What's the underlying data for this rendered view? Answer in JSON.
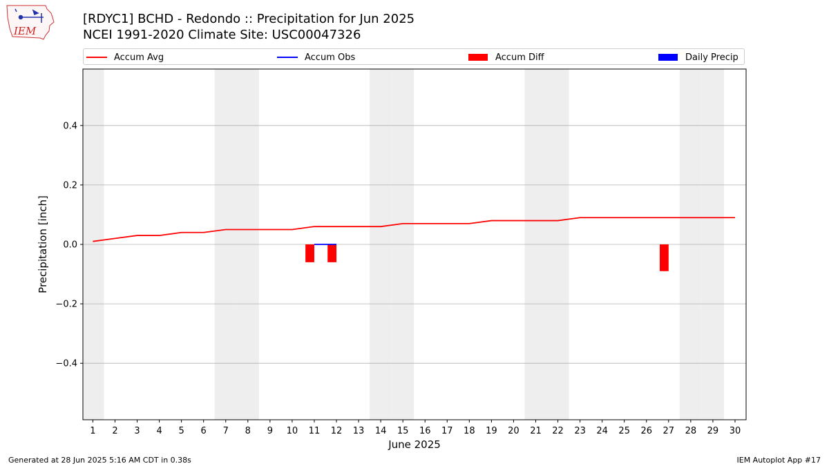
{
  "header": {
    "title_line1": "[RDYC1] BCHD - Redondo :: Precipitation for Jun 2025",
    "title_line2": "NCEI 1991-2020 Climate Site: USC00047326"
  },
  "logo": {
    "text": "IEM",
    "icon": "iem-iowa-logo"
  },
  "footer": {
    "left": "Generated at 28 Jun 2025 5:16 AM CDT in 0.38s",
    "right": "IEM Autoplot App #17"
  },
  "colors": {
    "accum_avg": "#ff0000",
    "accum_obs": "#0000ff",
    "accum_diff": "#ff0000",
    "daily_precip": "#0000ff",
    "weekend_shade": "#eeeeee",
    "grid": "#b0b0b0"
  },
  "chart_data": {
    "type": "line",
    "xlabel": "June 2025",
    "ylabel": "Precipitation [inch]",
    "x": [
      1,
      2,
      3,
      4,
      5,
      6,
      7,
      8,
      9,
      10,
      11,
      12,
      13,
      14,
      15,
      16,
      17,
      18,
      19,
      20,
      21,
      22,
      23,
      24,
      25,
      26,
      27,
      28,
      29,
      30
    ],
    "xticks": [
      "1",
      "2",
      "3",
      "4",
      "5",
      "6",
      "7",
      "8",
      "9",
      "10",
      "11",
      "12",
      "13",
      "14",
      "15",
      "16",
      "17",
      "18",
      "19",
      "20",
      "21",
      "22",
      "23",
      "24",
      "25",
      "26",
      "27",
      "28",
      "29",
      "30"
    ],
    "yticks": [
      -0.4,
      -0.2,
      0.0,
      0.2,
      0.4
    ],
    "ytick_labels": [
      "−0.4",
      "−0.2",
      "0.0",
      "0.2",
      "0.4"
    ],
    "xlim": [
      0.55,
      30.5
    ],
    "ylim": [
      -0.59,
      0.59
    ],
    "grid": "horizontal",
    "legend_position": "top",
    "weekend_days": [
      1,
      7,
      8,
      14,
      15,
      21,
      22,
      28,
      29
    ],
    "series": [
      {
        "name": "Accum Avg",
        "type": "line",
        "values": [
          0.01,
          0.02,
          0.03,
          0.03,
          0.04,
          0.04,
          0.05,
          0.05,
          0.05,
          0.05,
          0.06,
          0.06,
          0.06,
          0.06,
          0.07,
          0.07,
          0.07,
          0.07,
          0.08,
          0.08,
          0.08,
          0.08,
          0.09,
          0.09,
          0.09,
          0.09,
          0.09,
          0.09,
          0.09,
          0.09
        ]
      },
      {
        "name": "Accum Obs",
        "type": "line",
        "x": [
          11,
          12
        ],
        "values": [
          0.0,
          0.0
        ]
      },
      {
        "name": "Accum Diff",
        "type": "bar",
        "x": [
          11,
          12,
          27
        ],
        "values": [
          -0.06,
          -0.06,
          -0.09
        ]
      },
      {
        "name": "Daily Precip",
        "type": "bar",
        "x": [],
        "values": []
      }
    ]
  }
}
